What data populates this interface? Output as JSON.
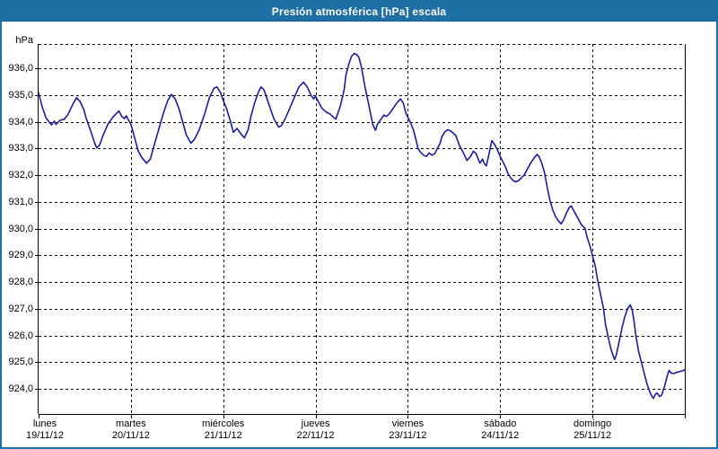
{
  "window": {
    "title": "Presión atmosférica [hPa] escala"
  },
  "colors": {
    "titlebar_bg": "#1d6fa5",
    "titlebar_text": "#ffffff",
    "frame": "#1d6fa5",
    "plot_line": "#1c1caa",
    "grid_line": "#000000",
    "background": "#ffffff"
  },
  "chart_data": {
    "type": "line",
    "title": "Presión atmosférica [hPa] escala",
    "ylabel": "hPa",
    "grid": "dashed",
    "legend": "none",
    "x_range_days": [
      0,
      7
    ],
    "y_range": [
      923.07,
      936.91
    ],
    "y_ticks": [
      {
        "value": 936,
        "label": "936,0"
      },
      {
        "value": 935,
        "label": "935,0"
      },
      {
        "value": 934,
        "label": "934,0"
      },
      {
        "value": 933,
        "label": "933,0"
      },
      {
        "value": 932,
        "label": "932,0"
      },
      {
        "value": 931,
        "label": "931,0"
      },
      {
        "value": 930,
        "label": "930,0"
      },
      {
        "value": 929,
        "label": "929,0"
      },
      {
        "value": 928,
        "label": "928,0"
      },
      {
        "value": 927,
        "label": "927,0"
      },
      {
        "value": 926,
        "label": "926,0"
      },
      {
        "value": 925,
        "label": "925,0"
      },
      {
        "value": 924,
        "label": "924,0"
      }
    ],
    "x_days": [
      {
        "name": "lunes",
        "date": "19/11/12"
      },
      {
        "name": "martes",
        "date": "20/11/12"
      },
      {
        "name": "miércoles",
        "date": "21/11/12"
      },
      {
        "name": "jueves",
        "date": "22/11/12"
      },
      {
        "name": "viernes",
        "date": "23/11/12"
      },
      {
        "name": "sábado",
        "date": "24/11/12"
      },
      {
        "name": "domingo",
        "date": "25/11/12"
      }
    ],
    "series": [
      {
        "name": "Presión atmosférica [hPa]",
        "points": [
          [
            0.0,
            935.08
          ],
          [
            0.04,
            934.55
          ],
          [
            0.08,
            934.15
          ],
          [
            0.14,
            933.88
          ],
          [
            0.17,
            934.02
          ],
          [
            0.19,
            933.9
          ],
          [
            0.23,
            934.05
          ],
          [
            0.28,
            934.1
          ],
          [
            0.32,
            934.28
          ],
          [
            0.37,
            934.65
          ],
          [
            0.41,
            934.9
          ],
          [
            0.45,
            934.75
          ],
          [
            0.49,
            934.45
          ],
          [
            0.52,
            934.08
          ],
          [
            0.57,
            933.6
          ],
          [
            0.61,
            933.18
          ],
          [
            0.63,
            933.02
          ],
          [
            0.66,
            933.12
          ],
          [
            0.7,
            933.5
          ],
          [
            0.75,
            933.9
          ],
          [
            0.8,
            934.15
          ],
          [
            0.84,
            934.3
          ],
          [
            0.87,
            934.4
          ],
          [
            0.9,
            934.2
          ],
          [
            0.93,
            934.12
          ],
          [
            0.95,
            934.22
          ],
          [
            0.97,
            934.08
          ],
          [
            1.0,
            933.9
          ],
          [
            1.04,
            933.4
          ],
          [
            1.08,
            932.9
          ],
          [
            1.12,
            932.65
          ],
          [
            1.17,
            932.45
          ],
          [
            1.21,
            932.6
          ],
          [
            1.25,
            933.1
          ],
          [
            1.3,
            933.7
          ],
          [
            1.35,
            934.3
          ],
          [
            1.4,
            934.8
          ],
          [
            1.44,
            935.02
          ],
          [
            1.48,
            934.85
          ],
          [
            1.52,
            934.5
          ],
          [
            1.56,
            934.0
          ],
          [
            1.6,
            933.5
          ],
          [
            1.65,
            933.2
          ],
          [
            1.69,
            933.35
          ],
          [
            1.74,
            933.7
          ],
          [
            1.8,
            934.3
          ],
          [
            1.85,
            934.9
          ],
          [
            1.9,
            935.25
          ],
          [
            1.93,
            935.3
          ],
          [
            1.97,
            935.1
          ],
          [
            2.0,
            934.8
          ],
          [
            2.04,
            934.45
          ],
          [
            2.08,
            934.0
          ],
          [
            2.11,
            933.6
          ],
          [
            2.15,
            933.75
          ],
          [
            2.19,
            933.55
          ],
          [
            2.23,
            933.4
          ],
          [
            2.27,
            933.7
          ],
          [
            2.3,
            934.2
          ],
          [
            2.34,
            934.7
          ],
          [
            2.38,
            935.1
          ],
          [
            2.41,
            935.3
          ],
          [
            2.44,
            935.2
          ],
          [
            2.47,
            934.9
          ],
          [
            2.51,
            934.5
          ],
          [
            2.55,
            934.1
          ],
          [
            2.6,
            933.8
          ],
          [
            2.63,
            933.85
          ],
          [
            2.67,
            934.1
          ],
          [
            2.72,
            934.5
          ],
          [
            2.77,
            934.9
          ],
          [
            2.82,
            935.3
          ],
          [
            2.87,
            935.48
          ],
          [
            2.91,
            935.3
          ],
          [
            2.95,
            935.0
          ],
          [
            2.98,
            934.85
          ],
          [
            3.0,
            934.95
          ],
          [
            3.03,
            934.75
          ],
          [
            3.07,
            934.5
          ],
          [
            3.12,
            934.35
          ],
          [
            3.16,
            934.28
          ],
          [
            3.2,
            934.15
          ],
          [
            3.22,
            934.1
          ],
          [
            3.27,
            934.6
          ],
          [
            3.31,
            935.2
          ],
          [
            3.33,
            935.75
          ],
          [
            3.36,
            936.15
          ],
          [
            3.39,
            936.45
          ],
          [
            3.42,
            936.55
          ],
          [
            3.45,
            936.5
          ],
          [
            3.47,
            936.4
          ],
          [
            3.5,
            936.0
          ],
          [
            3.53,
            935.4
          ],
          [
            3.56,
            934.9
          ],
          [
            3.59,
            934.4
          ],
          [
            3.62,
            933.9
          ],
          [
            3.65,
            933.68
          ],
          [
            3.67,
            933.9
          ],
          [
            3.71,
            934.1
          ],
          [
            3.74,
            934.25
          ],
          [
            3.77,
            934.2
          ],
          [
            3.8,
            934.3
          ],
          [
            3.84,
            934.5
          ],
          [
            3.88,
            934.7
          ],
          [
            3.92,
            934.85
          ],
          [
            3.95,
            934.7
          ],
          [
            3.98,
            934.3
          ],
          [
            4.01,
            934.1
          ],
          [
            4.03,
            933.95
          ],
          [
            4.06,
            933.7
          ],
          [
            4.09,
            933.3
          ],
          [
            4.11,
            933.0
          ],
          [
            4.14,
            932.85
          ],
          [
            4.17,
            932.75
          ],
          [
            4.2,
            932.7
          ],
          [
            4.23,
            932.83
          ],
          [
            4.26,
            932.75
          ],
          [
            4.29,
            932.8
          ],
          [
            4.32,
            933.0
          ],
          [
            4.35,
            933.2
          ],
          [
            4.37,
            933.45
          ],
          [
            4.4,
            933.62
          ],
          [
            4.43,
            933.7
          ],
          [
            4.46,
            933.66
          ],
          [
            4.49,
            933.58
          ],
          [
            4.52,
            933.48
          ],
          [
            4.56,
            933.1
          ],
          [
            4.6,
            932.85
          ],
          [
            4.64,
            932.55
          ],
          [
            4.68,
            932.7
          ],
          [
            4.71,
            932.9
          ],
          [
            4.74,
            932.8
          ],
          [
            4.78,
            932.45
          ],
          [
            4.81,
            932.6
          ],
          [
            4.83,
            932.42
          ],
          [
            4.85,
            932.35
          ],
          [
            4.88,
            932.8
          ],
          [
            4.91,
            933.3
          ],
          [
            4.94,
            933.15
          ],
          [
            4.97,
            932.95
          ],
          [
            5.0,
            932.7
          ],
          [
            5.03,
            932.5
          ],
          [
            5.06,
            932.28
          ],
          [
            5.08,
            932.1
          ],
          [
            5.11,
            931.92
          ],
          [
            5.14,
            931.8
          ],
          [
            5.17,
            931.75
          ],
          [
            5.2,
            931.8
          ],
          [
            5.23,
            931.9
          ],
          [
            5.26,
            932.0
          ],
          [
            5.29,
            932.2
          ],
          [
            5.33,
            932.45
          ],
          [
            5.37,
            932.65
          ],
          [
            5.4,
            932.78
          ],
          [
            5.42,
            932.7
          ],
          [
            5.45,
            932.45
          ],
          [
            5.48,
            932.1
          ],
          [
            5.51,
            931.55
          ],
          [
            5.54,
            931.05
          ],
          [
            5.57,
            930.7
          ],
          [
            5.6,
            930.45
          ],
          [
            5.63,
            930.3
          ],
          [
            5.66,
            930.18
          ],
          [
            5.69,
            930.35
          ],
          [
            5.72,
            930.6
          ],
          [
            5.75,
            930.8
          ],
          [
            5.77,
            930.85
          ],
          [
            5.8,
            930.65
          ],
          [
            5.84,
            930.4
          ],
          [
            5.88,
            930.15
          ],
          [
            5.92,
            930.0
          ],
          [
            5.94,
            929.7
          ],
          [
            5.97,
            929.38
          ],
          [
            6.0,
            929.0
          ],
          [
            6.03,
            928.6
          ],
          [
            6.06,
            928.0
          ],
          [
            6.09,
            927.5
          ],
          [
            6.12,
            927.0
          ],
          [
            6.14,
            926.45
          ],
          [
            6.17,
            925.95
          ],
          [
            6.2,
            925.5
          ],
          [
            6.22,
            925.28
          ],
          [
            6.24,
            925.1
          ],
          [
            6.26,
            925.3
          ],
          [
            6.29,
            925.8
          ],
          [
            6.32,
            926.3
          ],
          [
            6.35,
            926.7
          ],
          [
            6.38,
            927.0
          ],
          [
            6.41,
            927.15
          ],
          [
            6.43,
            926.95
          ],
          [
            6.45,
            926.55
          ],
          [
            6.47,
            926.0
          ],
          [
            6.5,
            925.4
          ],
          [
            6.53,
            925.0
          ],
          [
            6.56,
            924.6
          ],
          [
            6.59,
            924.2
          ],
          [
            6.62,
            923.9
          ],
          [
            6.64,
            923.75
          ],
          [
            6.66,
            923.65
          ],
          [
            6.68,
            923.8
          ],
          [
            6.7,
            923.85
          ],
          [
            6.73,
            923.72
          ],
          [
            6.75,
            923.78
          ],
          [
            6.78,
            924.1
          ],
          [
            6.81,
            924.5
          ],
          [
            6.83,
            924.7
          ],
          [
            6.85,
            924.6
          ],
          [
            6.88,
            924.58
          ],
          [
            6.91,
            924.62
          ],
          [
            6.94,
            924.65
          ],
          [
            6.97,
            924.68
          ],
          [
            7.0,
            924.72
          ]
        ]
      }
    ]
  }
}
